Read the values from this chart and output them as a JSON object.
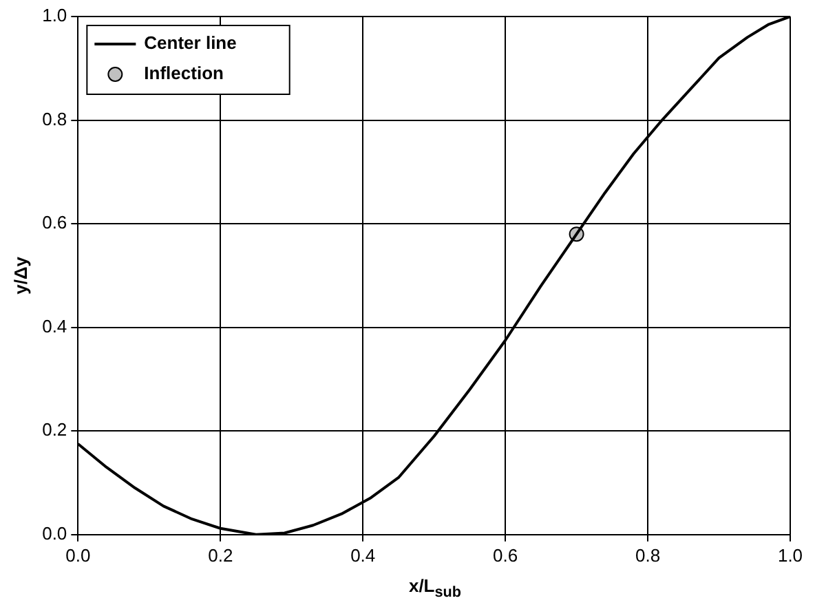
{
  "chart_data": {
    "type": "line",
    "xlabel": "x/L$_{sub}$",
    "ylabel": "y/Δy",
    "xlim": [
      0,
      1
    ],
    "ylim": [
      0,
      1
    ],
    "xticks": [
      {
        "value": 0,
        "label": "0.0"
      },
      {
        "value": 0.2,
        "label": "0.2"
      },
      {
        "value": 0.4,
        "label": "0.4"
      },
      {
        "value": 0.6,
        "label": "0.6"
      },
      {
        "value": 0.8,
        "label": "0.8"
      },
      {
        "value": 1,
        "label": "1.0"
      }
    ],
    "yticks": [
      {
        "value": 0,
        "label": "0.0"
      },
      {
        "value": 0.2,
        "label": "0.2"
      },
      {
        "value": 0.4,
        "label": "0.4"
      },
      {
        "value": 0.6,
        "label": "0.6"
      },
      {
        "value": 0.8,
        "label": "0.8"
      },
      {
        "value": 1,
        "label": "1.0"
      }
    ],
    "grid": true,
    "legend": "top left",
    "series": [
      {
        "name": "Center line",
        "color": "#000000",
        "marker": "none",
        "x": [
          0,
          0.04,
          0.08,
          0.12,
          0.16,
          0.2,
          0.25,
          0.29,
          0.33,
          0.37,
          0.41,
          0.45,
          0.5,
          0.55,
          0.6,
          0.65,
          0.7,
          0.74,
          0.78,
          0.82,
          0.86,
          0.9,
          0.94,
          0.97,
          1.0
        ],
        "values": [
          0.175,
          0.13,
          0.09,
          0.055,
          0.03,
          0.012,
          0.0,
          0.003,
          0.018,
          0.04,
          0.07,
          0.11,
          0.19,
          0.28,
          0.375,
          0.48,
          0.58,
          0.66,
          0.735,
          0.8,
          0.86,
          0.92,
          0.96,
          0.985,
          1.0
        ]
      },
      {
        "name": "Inflection",
        "type": "scatter",
        "color": "#c0c0c0",
        "marker": "circle",
        "x": [
          0.7
        ],
        "values": [
          0.58
        ]
      }
    ]
  }
}
